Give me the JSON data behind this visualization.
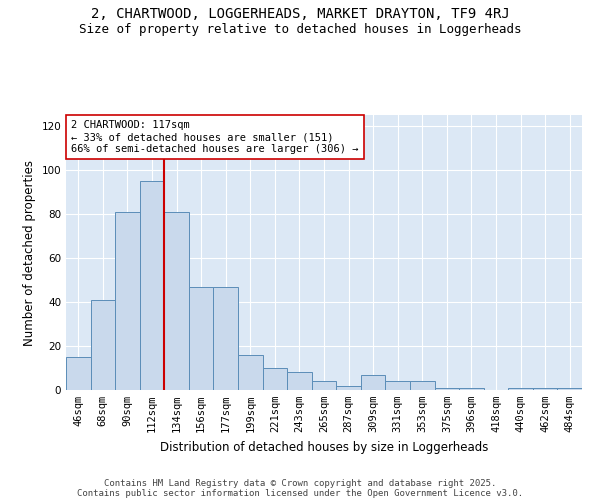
{
  "title_line1": "2, CHARTWOOD, LOGGERHEADS, MARKET DRAYTON, TF9 4RJ",
  "title_line2": "Size of property relative to detached houses in Loggerheads",
  "xlabel": "Distribution of detached houses by size in Loggerheads",
  "ylabel": "Number of detached properties",
  "categories": [
    "46sqm",
    "68sqm",
    "90sqm",
    "112sqm",
    "134sqm",
    "156sqm",
    "177sqm",
    "199sqm",
    "221sqm",
    "243sqm",
    "265sqm",
    "287sqm",
    "309sqm",
    "331sqm",
    "353sqm",
    "375sqm",
    "396sqm",
    "418sqm",
    "440sqm",
    "462sqm",
    "484sqm"
  ],
  "values": [
    15,
    41,
    81,
    95,
    81,
    47,
    47,
    16,
    10,
    8,
    4,
    2,
    7,
    4,
    4,
    1,
    1,
    0,
    1,
    1,
    1
  ],
  "bar_color": "#c9d9ec",
  "bar_edge_color": "#5b8db8",
  "vline_x": 3.5,
  "vline_color": "#cc0000",
  "annotation_title": "2 CHARTWOOD: 117sqm",
  "annotation_line1": "← 33% of detached houses are smaller (151)",
  "annotation_line2": "66% of semi-detached houses are larger (306) →",
  "annotation_box_color": "#ffffff",
  "annotation_box_edge": "#cc0000",
  "ylim": [
    0,
    125
  ],
  "yticks": [
    0,
    20,
    40,
    60,
    80,
    100,
    120
  ],
  "background_color": "#dce8f5",
  "grid_color": "#ffffff",
  "footer_line1": "Contains HM Land Registry data © Crown copyright and database right 2025.",
  "footer_line2": "Contains public sector information licensed under the Open Government Licence v3.0.",
  "title_fontsize": 10,
  "subtitle_fontsize": 9,
  "axis_label_fontsize": 8.5,
  "tick_fontsize": 7.5,
  "footer_fontsize": 6.5
}
